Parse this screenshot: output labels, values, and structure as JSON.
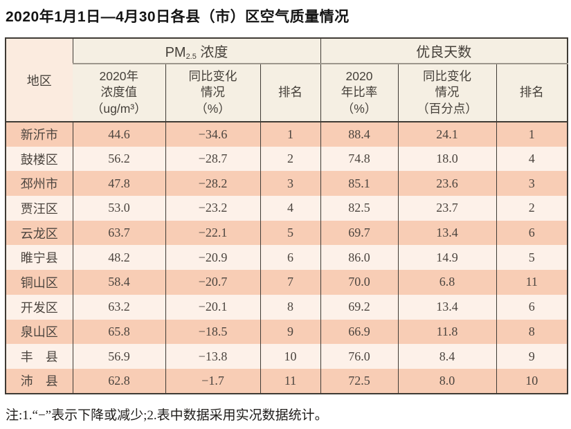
{
  "page": {
    "title": "2020年1月1日—4月30日各县（市）区空气质量情况",
    "note": "注:1.“−”表示下降或减少;2.表中数据采用实况数据统计。"
  },
  "table": {
    "region_header": "地区",
    "pm_group": {
      "prefix": "PM",
      "sub": "2.5",
      "suffix": " 浓度"
    },
    "good_group_label": "优良天数",
    "subheaders": [
      "2020年\n浓度值\n（ug/m³）",
      "同比变化\n情况\n（%）",
      "排名",
      "2020\n年比率\n（%）",
      "同比变化\n情况\n（百分点）",
      "排名"
    ],
    "rows": [
      {
        "region": "新沂市",
        "pm_value": "44.6",
        "pm_change": "−34.6",
        "pm_rank": "1",
        "good_rate": "88.4",
        "good_change": "24.1",
        "good_rank": "1"
      },
      {
        "region": "鼓楼区",
        "pm_value": "56.2",
        "pm_change": "−28.7",
        "pm_rank": "2",
        "good_rate": "74.8",
        "good_change": "18.0",
        "good_rank": "4"
      },
      {
        "region": "邳州市",
        "pm_value": "47.8",
        "pm_change": "−28.2",
        "pm_rank": "3",
        "good_rate": "85.1",
        "good_change": "23.6",
        "good_rank": "3"
      },
      {
        "region": "贾汪区",
        "pm_value": "53.0",
        "pm_change": "−23.2",
        "pm_rank": "4",
        "good_rate": "82.5",
        "good_change": "23.7",
        "good_rank": "2"
      },
      {
        "region": "云龙区",
        "pm_value": "63.7",
        "pm_change": "−22.1",
        "pm_rank": "5",
        "good_rate": "69.7",
        "good_change": "13.4",
        "good_rank": "6"
      },
      {
        "region": "睢宁县",
        "pm_value": "48.2",
        "pm_change": "−20.9",
        "pm_rank": "6",
        "good_rate": "86.0",
        "good_change": "14.9",
        "good_rank": "5"
      },
      {
        "region": "铜山区",
        "pm_value": "58.4",
        "pm_change": "−20.7",
        "pm_rank": "7",
        "good_rate": "70.0",
        "good_change": "6.8",
        "good_rank": "11"
      },
      {
        "region": "开发区",
        "pm_value": "63.2",
        "pm_change": "−20.1",
        "pm_rank": "8",
        "good_rate": "69.2",
        "good_change": "13.4",
        "good_rank": "6"
      },
      {
        "region": "泉山区",
        "pm_value": "65.8",
        "pm_change": "−18.5",
        "pm_rank": "9",
        "good_rate": "66.9",
        "good_change": "11.8",
        "good_rank": "8"
      },
      {
        "region": "丰　县",
        "pm_value": "56.9",
        "pm_change": "−13.8",
        "pm_rank": "10",
        "good_rate": "76.0",
        "good_change": "8.4",
        "good_rank": "9"
      },
      {
        "region": "沛　县",
        "pm_value": "62.8",
        "pm_change": "−1.7",
        "pm_rank": "11",
        "good_rate": "72.5",
        "good_change": "8.0",
        "good_rank": "10"
      }
    ]
  },
  "theme": {
    "band_color": "#f8cdb5",
    "band_alt_color": "#fdf1e9",
    "header_bg": "#f5efe3",
    "corner_bg": "#fbebdf",
    "border_dark": "#3e3a34",
    "divider_gray": "#9c968c",
    "title_color": "#141414",
    "body_text_color": "#4b443e"
  }
}
